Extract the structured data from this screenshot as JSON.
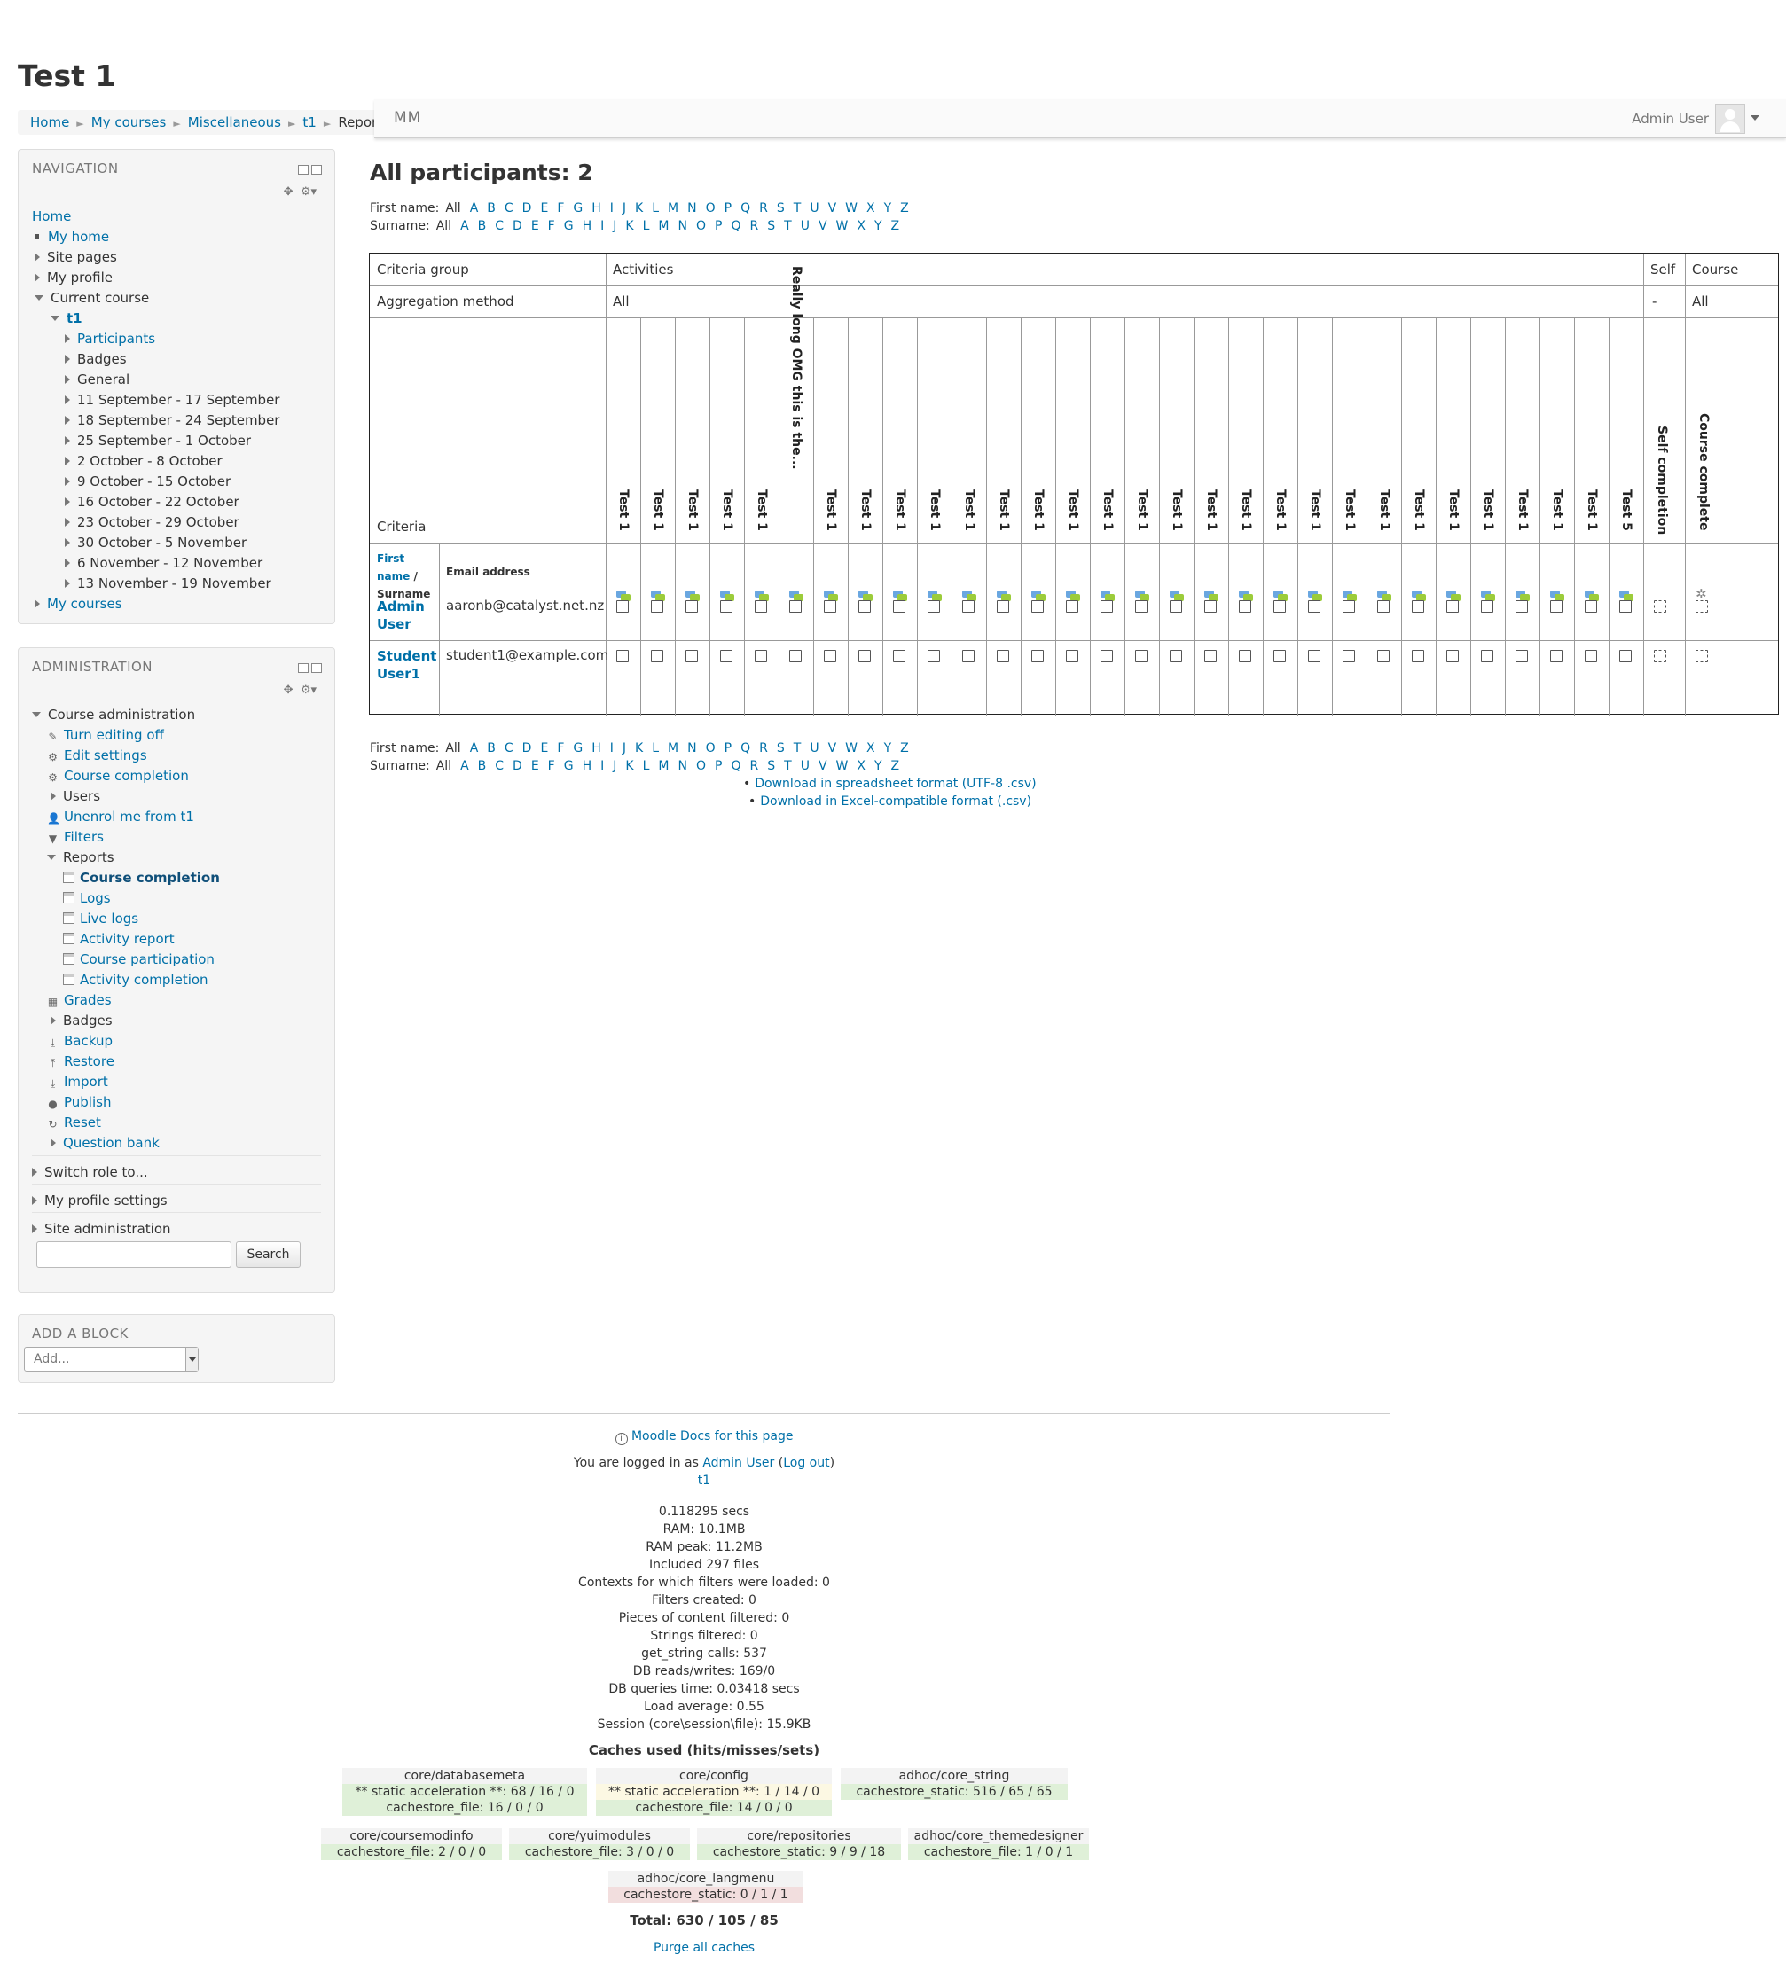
{
  "page_title": "Test 1",
  "breadcrumb": [
    "Home",
    "My courses",
    "Miscellaneous",
    "t1",
    "Reports"
  ],
  "topbar": {
    "brand": "MM",
    "user": "Admin User"
  },
  "navigation": {
    "title": "NAVIGATION",
    "items": [
      {
        "label": "Home",
        "link": true
      },
      {
        "label": "My home",
        "link": true
      },
      {
        "label": "Site pages",
        "link": false
      },
      {
        "label": "My profile",
        "link": false
      },
      {
        "label": "Current course",
        "link": false
      },
      {
        "label": "t1",
        "link": true
      },
      {
        "label": "Participants",
        "link": true
      },
      {
        "label": "Badges",
        "link": false
      },
      {
        "label": "General",
        "link": false
      },
      {
        "label": "11 September - 17 September",
        "link": false
      },
      {
        "label": "18 September - 24 September",
        "link": false
      },
      {
        "label": "25 September - 1 October",
        "link": false
      },
      {
        "label": "2 October - 8 October",
        "link": false
      },
      {
        "label": "9 October - 15 October",
        "link": false
      },
      {
        "label": "16 October - 22 October",
        "link": false
      },
      {
        "label": "23 October - 29 October",
        "link": false
      },
      {
        "label": "30 October - 5 November",
        "link": false
      },
      {
        "label": "6 November - 12 November",
        "link": false
      },
      {
        "label": "13 November - 19 November",
        "link": false
      },
      {
        "label": "My courses",
        "link": true
      }
    ]
  },
  "administration": {
    "title": "ADMINISTRATION",
    "items": [
      {
        "label": "Course administration"
      },
      {
        "label": "Turn editing off"
      },
      {
        "label": "Edit settings"
      },
      {
        "label": "Course completion"
      },
      {
        "label": "Users"
      },
      {
        "label": "Unenrol me from t1"
      },
      {
        "label": "Filters"
      },
      {
        "label": "Reports"
      },
      {
        "label": "Course completion"
      },
      {
        "label": "Logs"
      },
      {
        "label": "Live logs"
      },
      {
        "label": "Activity report"
      },
      {
        "label": "Course participation"
      },
      {
        "label": "Activity completion"
      },
      {
        "label": "Grades"
      },
      {
        "label": "Badges"
      },
      {
        "label": "Backup"
      },
      {
        "label": "Restore"
      },
      {
        "label": "Import"
      },
      {
        "label": "Publish"
      },
      {
        "label": "Reset"
      },
      {
        "label": "Question bank"
      },
      {
        "label": "Switch role to..."
      },
      {
        "label": "My profile settings"
      },
      {
        "label": "Site administration"
      }
    ],
    "search_button": "Search"
  },
  "add_block": {
    "title": "ADD A BLOCK",
    "select_value": "Add..."
  },
  "main": {
    "heading": "All participants: 2",
    "firstname_label": "First name:",
    "surname_label": "Surname:",
    "all_label": "All",
    "letters": [
      "A",
      "B",
      "C",
      "D",
      "E",
      "F",
      "G",
      "H",
      "I",
      "J",
      "K",
      "L",
      "M",
      "N",
      "O",
      "P",
      "Q",
      "R",
      "S",
      "T",
      "U",
      "V",
      "W",
      "X",
      "Y",
      "Z"
    ]
  },
  "report": {
    "criteria_group_label": "Criteria group",
    "activities_label": "Activities",
    "self_label": "Self",
    "course_label": "Course",
    "aggregation_label": "Aggregation method",
    "aggregation_activities": "All",
    "aggregation_self": "-",
    "aggregation_course": "All",
    "criteria_label": "Criteria",
    "activity_names": [
      "Test 1",
      "Test 1",
      "Test 1",
      "Test 1",
      "Test 1",
      "Really long OMG this is the...",
      "Test 1",
      "Test 1",
      "Test 1",
      "Test 1",
      "Test 1",
      "Test 1",
      "Test 1",
      "Test 1",
      "Test 1",
      "Test 1",
      "Test 1",
      "Test 1",
      "Test 1",
      "Test 1",
      "Test 1",
      "Test 1",
      "Test 1",
      "Test 1",
      "Test 1",
      "Test 1",
      "Test 1",
      "Test 1",
      "Test 1",
      "Test 5"
    ],
    "self_completion_label": "Self completion",
    "course_complete_label": "Course complete",
    "firstname_header": "First name",
    "slash": " / ",
    "surname_header": "Surname",
    "email_header": "Email address",
    "users": [
      {
        "first": "Admin",
        "last": "User",
        "email": "aaronb@catalyst.net.nz"
      },
      {
        "first": "Student",
        "last": "User1",
        "email": "student1@example.com"
      }
    ]
  },
  "downloads": [
    "Download in spreadsheet format (UTF-8 .csv)",
    "Download in Excel-compatible format (.csv)"
  ],
  "footer": {
    "docs_link": "Moodle Docs for this page",
    "logged_in_prefix": "You are logged in as ",
    "logged_in_user": "Admin User",
    "logout_open": " (",
    "logout": "Log out",
    "logout_close": ")",
    "course_link": "t1",
    "perf": [
      "0.118295 secs",
      "RAM: 10.1MB",
      "RAM peak: 11.2MB",
      "Included 297 files",
      "Contexts for which filters were loaded: 0",
      "Filters created: 0",
      "Pieces of content filtered: 0",
      "Strings filtered: 0",
      "get_string calls: 537",
      "DB reads/writes: 169/0",
      "DB queries time: 0.03418 secs",
      "Load average: 0.55",
      "Session (core\\session\\file): 15.9KB"
    ],
    "caches_title": "Caches used (hits/misses/sets)",
    "caches": [
      {
        "name": "core/databasemeta",
        "rows": [
          {
            "text": "** static acceleration **: 68 / 16 / 0",
            "status": "green"
          },
          {
            "text": "cachestore_file: 16 / 0 / 0",
            "status": "green"
          }
        ]
      },
      {
        "name": "core/config",
        "rows": [
          {
            "text": "** static acceleration **: 1 / 14 / 0",
            "status": "yellow"
          },
          {
            "text": "cachestore_file: 14 / 0 / 0",
            "status": "green"
          }
        ]
      },
      {
        "name": "adhoc/core_string",
        "rows": [
          {
            "text": "cachestore_static: 516 / 65 / 65",
            "status": "green"
          }
        ]
      },
      {
        "name": "core/coursemodinfo",
        "rows": [
          {
            "text": "cachestore_file: 2 / 0 / 0",
            "status": "green"
          }
        ]
      },
      {
        "name": "core/yuimodules",
        "rows": [
          {
            "text": "cachestore_file: 3 / 0 / 0",
            "status": "green"
          }
        ]
      },
      {
        "name": "core/repositories",
        "rows": [
          {
            "text": "cachestore_static: 9 / 9 / 18",
            "status": "green"
          }
        ]
      },
      {
        "name": "adhoc/core_themedesigner",
        "rows": [
          {
            "text": "cachestore_file: 1 / 0 / 1",
            "status": "green"
          }
        ]
      },
      {
        "name": "adhoc/core_langmenu",
        "rows": [
          {
            "text": "cachestore_static: 0 / 1 / 1",
            "status": "red"
          }
        ]
      }
    ],
    "total": "Total: 630 / 105 / 85",
    "purge": "Purge all caches"
  }
}
